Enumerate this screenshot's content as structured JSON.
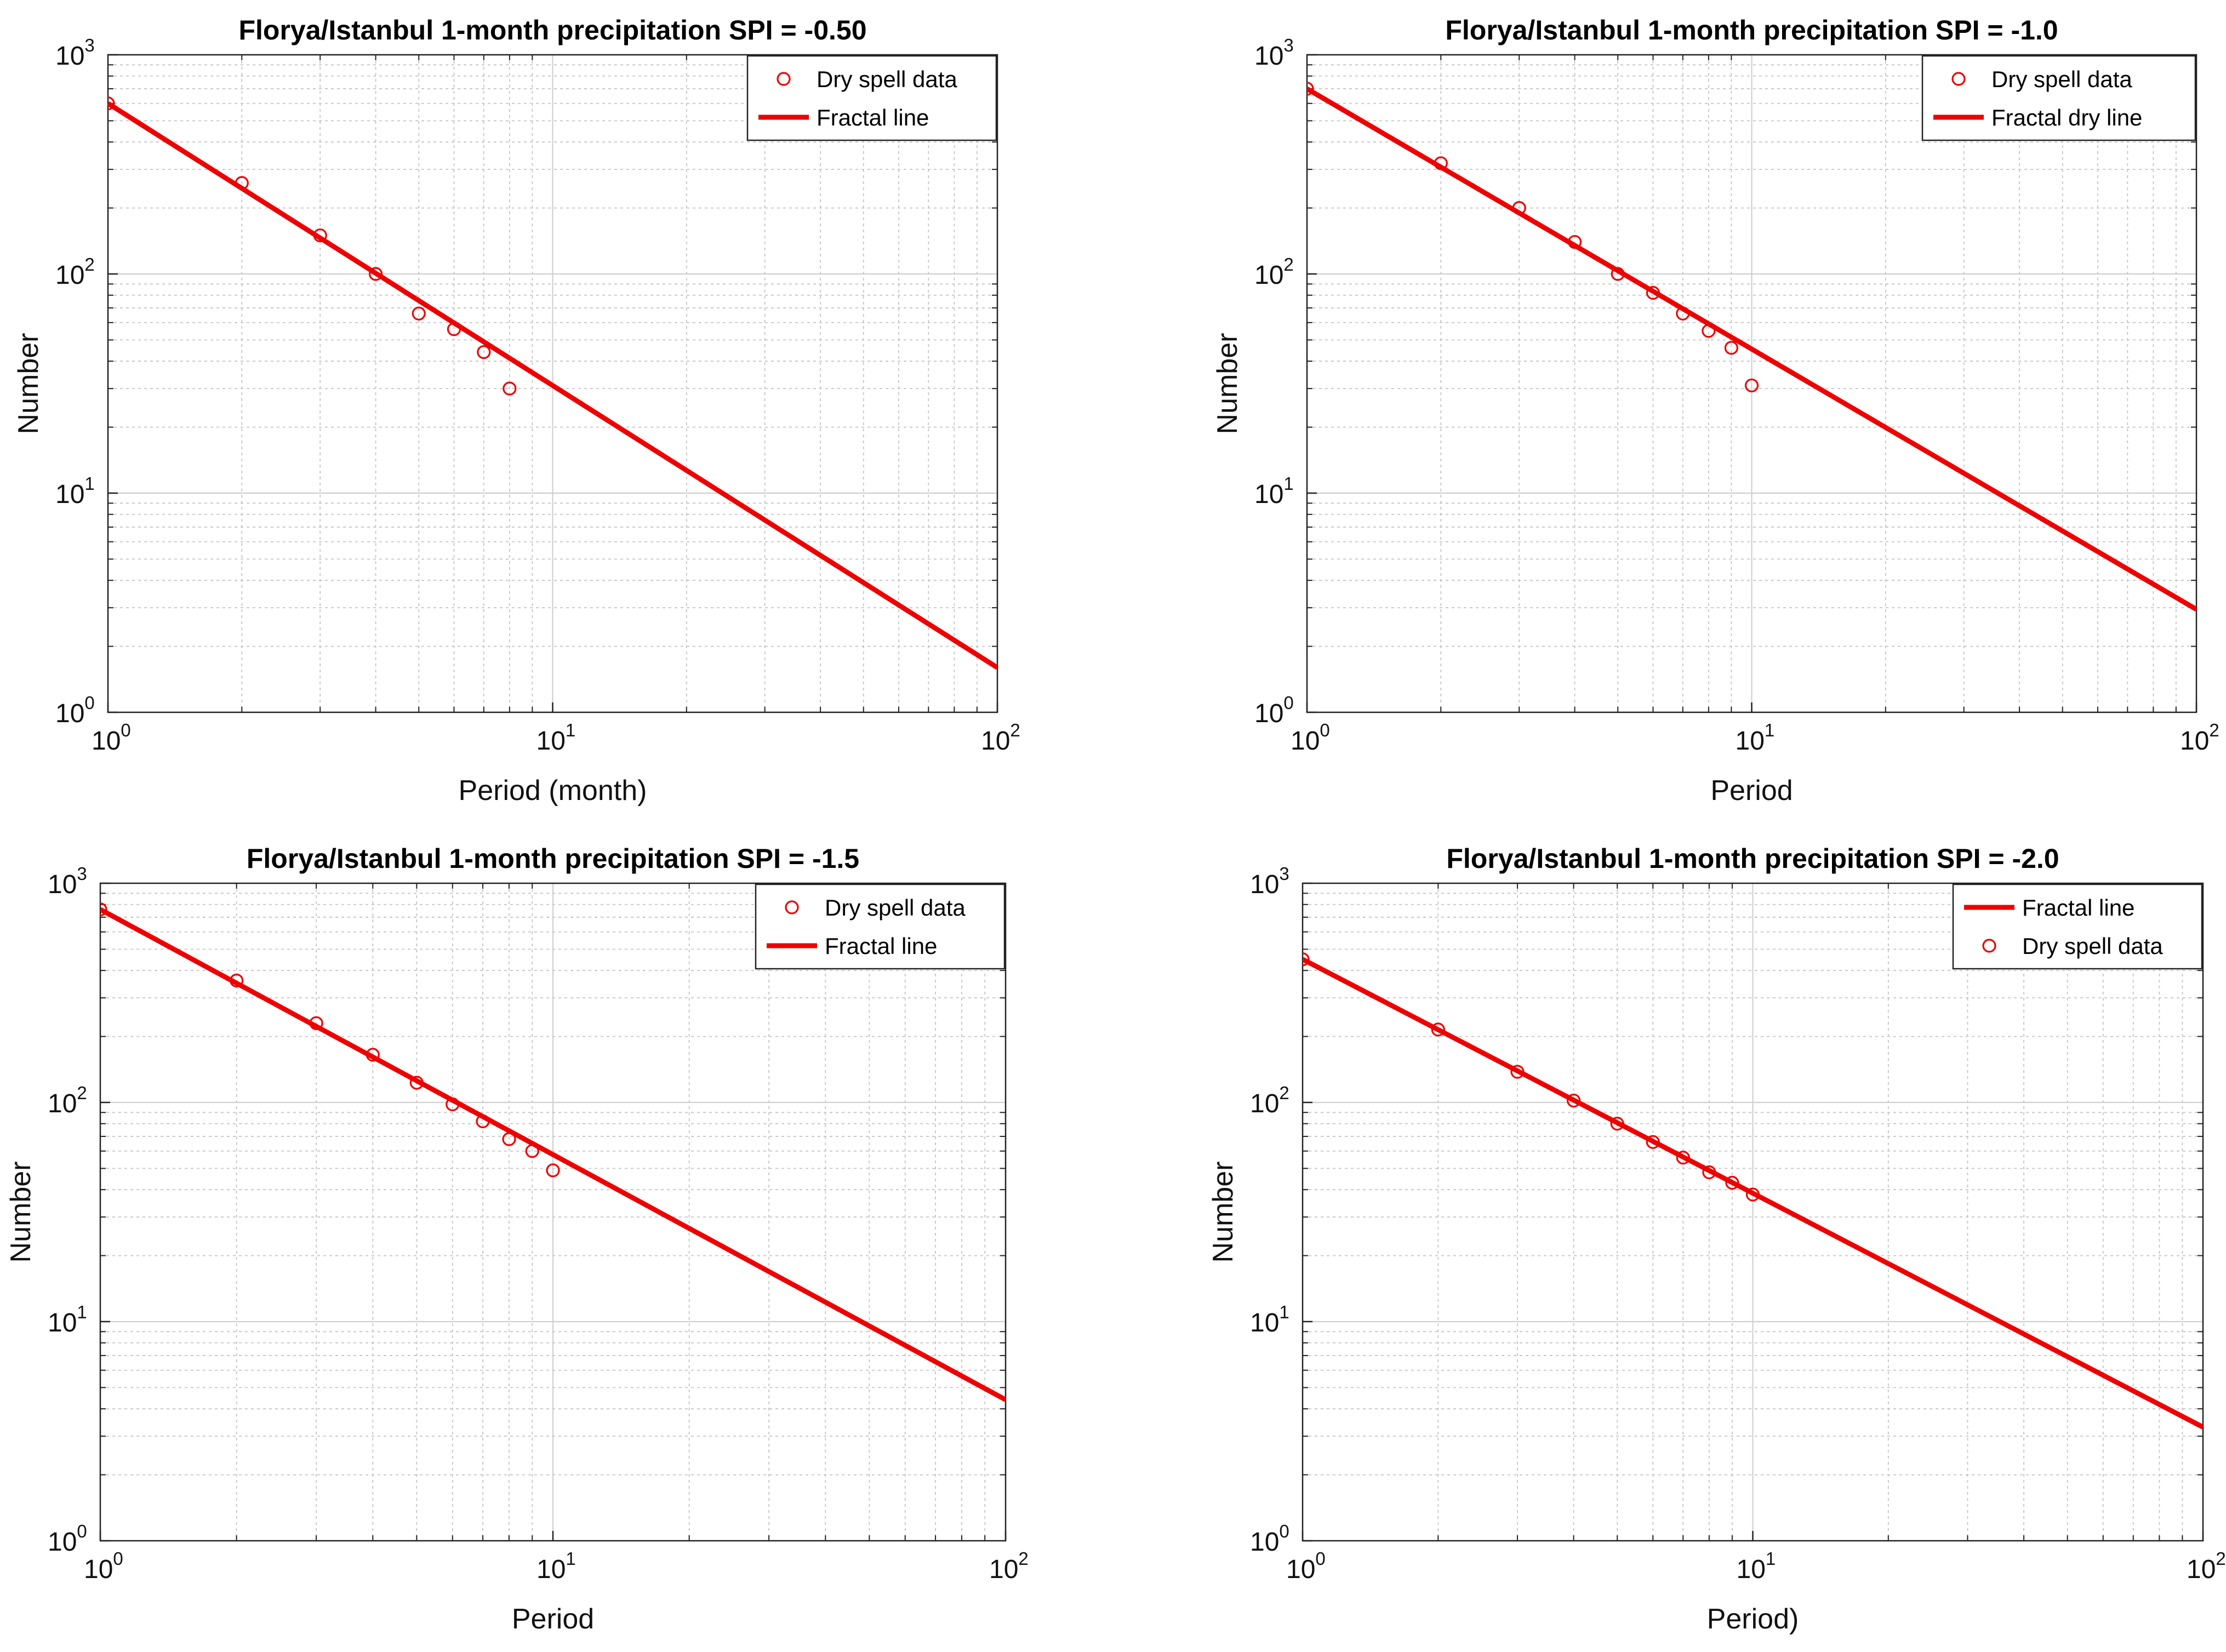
{
  "chart_data": [
    {
      "type": "scatter",
      "scale": "log-log",
      "title": "Florya/Istanbul 1-month precipitation SPI = -0.50",
      "xlabel": "Period (month)",
      "ylabel": "Number",
      "xlim": [
        1,
        100
      ],
      "ylim": [
        1,
        1000
      ],
      "grid": true,
      "legend_position": "top-right",
      "legend": [
        {
          "label": "Dry spell data",
          "kind": "marker"
        },
        {
          "label": "Fractal line",
          "kind": "line"
        }
      ],
      "series": [
        {
          "name": "Dry spell data",
          "kind": "marker",
          "x": [
            1,
            2,
            3,
            4,
            5,
            6,
            7,
            8
          ],
          "y": [
            600,
            260,
            150,
            100,
            66,
            56,
            44,
            30
          ]
        },
        {
          "name": "Fractal line",
          "kind": "line",
          "x": [
            1,
            100
          ],
          "y": [
            600,
            1.6
          ]
        }
      ],
      "x_ticks": [
        {
          "base": "10",
          "exp": "0",
          "value": 1
        },
        {
          "base": "10",
          "exp": "1",
          "value": 10
        },
        {
          "base": "10",
          "exp": "2",
          "value": 100
        }
      ],
      "y_ticks": [
        {
          "base": "10",
          "exp": "0",
          "value": 1
        },
        {
          "base": "10",
          "exp": "1",
          "value": 10
        },
        {
          "base": "10",
          "exp": "2",
          "value": 100
        },
        {
          "base": "10",
          "exp": "3",
          "value": 1000
        }
      ]
    },
    {
      "type": "scatter",
      "scale": "log-log",
      "title": "Florya/Istanbul 1-month precipitation SPI = -1.0",
      "xlabel": "Period",
      "ylabel": "Number",
      "xlim": [
        1,
        100
      ],
      "ylim": [
        1,
        1000
      ],
      "grid": true,
      "legend_position": "top-right",
      "legend": [
        {
          "label": "Dry spell data",
          "kind": "marker"
        },
        {
          "label": "Fractal dry line",
          "kind": "line"
        }
      ],
      "series": [
        {
          "name": "Dry spell data",
          "kind": "marker",
          "x": [
            1,
            2,
            3,
            4,
            5,
            6,
            7,
            8,
            9,
            10
          ],
          "y": [
            700,
            320,
            200,
            140,
            100,
            82,
            66,
            55,
            46,
            31
          ]
        },
        {
          "name": "Fractal dry line",
          "kind": "line",
          "x": [
            1,
            100
          ],
          "y": [
            700,
            2.95
          ]
        }
      ],
      "x_ticks": [
        {
          "base": "10",
          "exp": "0",
          "value": 1
        },
        {
          "base": "10",
          "exp": "1",
          "value": 10
        },
        {
          "base": "10",
          "exp": "2",
          "value": 100
        }
      ],
      "y_ticks": [
        {
          "base": "10",
          "exp": "0",
          "value": 1
        },
        {
          "base": "10",
          "exp": "1",
          "value": 10
        },
        {
          "base": "10",
          "exp": "2",
          "value": 100
        },
        {
          "base": "10",
          "exp": "3",
          "value": 1000
        }
      ]
    },
    {
      "type": "scatter",
      "scale": "log-log",
      "title": "Florya/Istanbul 1-month precipitation SPI = -1.5",
      "xlabel": "Period",
      "ylabel": "Number",
      "xlim": [
        1,
        100
      ],
      "ylim": [
        1,
        1000
      ],
      "grid": true,
      "legend_position": "top-right",
      "legend": [
        {
          "label": "Dry spell data",
          "kind": "marker"
        },
        {
          "label": "Fractal line",
          "kind": "line"
        }
      ],
      "series": [
        {
          "name": "Dry spell data",
          "kind": "marker",
          "x": [
            1,
            2,
            3,
            4,
            5,
            6,
            7,
            8,
            9,
            10
          ],
          "y": [
            760,
            360,
            230,
            165,
            123,
            98,
            82,
            68,
            60,
            49
          ]
        },
        {
          "name": "Fractal line",
          "kind": "line",
          "x": [
            1,
            100
          ],
          "y": [
            760,
            4.4
          ]
        }
      ],
      "x_ticks": [
        {
          "base": "10",
          "exp": "0",
          "value": 1
        },
        {
          "base": "10",
          "exp": "1",
          "value": 10
        },
        {
          "base": "10",
          "exp": "2",
          "value": 100
        }
      ],
      "y_ticks": [
        {
          "base": "10",
          "exp": "0",
          "value": 1
        },
        {
          "base": "10",
          "exp": "1",
          "value": 10
        },
        {
          "base": "10",
          "exp": "2",
          "value": 100
        },
        {
          "base": "10",
          "exp": "3",
          "value": 1000
        }
      ]
    },
    {
      "type": "scatter",
      "scale": "log-log",
      "title": "Florya/Istanbul 1-month precipitation SPI = -2.0",
      "xlabel": "Period)",
      "ylabel": "Number",
      "xlim": [
        1,
        100
      ],
      "ylim": [
        1,
        1000
      ],
      "grid": true,
      "legend_position": "top-right",
      "legend": [
        {
          "label": "Fractal  line",
          "kind": "line"
        },
        {
          "label": "Dry spell data",
          "kind": "marker"
        }
      ],
      "series": [
        {
          "name": "Fractal  line",
          "kind": "line",
          "x": [
            1,
            100
          ],
          "y": [
            450,
            3.3
          ]
        },
        {
          "name": "Dry spell data",
          "kind": "marker",
          "x": [
            1,
            2,
            3,
            4,
            5,
            6,
            7,
            8,
            9,
            10
          ],
          "y": [
            450,
            215,
            138,
            102,
            80,
            66,
            56,
            48,
            43,
            38
          ]
        }
      ],
      "x_ticks": [
        {
          "base": "10",
          "exp": "0",
          "value": 1
        },
        {
          "base": "10",
          "exp": "1",
          "value": 10
        },
        {
          "base": "10",
          "exp": "2",
          "value": 100
        }
      ],
      "y_ticks": [
        {
          "base": "10",
          "exp": "0",
          "value": 1
        },
        {
          "base": "10",
          "exp": "1",
          "value": 10
        },
        {
          "base": "10",
          "exp": "2",
          "value": 100
        },
        {
          "base": "10",
          "exp": "3",
          "value": 1000
        }
      ]
    }
  ],
  "colors": {
    "series": "#ee0000",
    "grid_major": "#d0d0d0",
    "grid_minor": "#c4c4c4",
    "axis": "#222222",
    "background": "#ffffff"
  }
}
